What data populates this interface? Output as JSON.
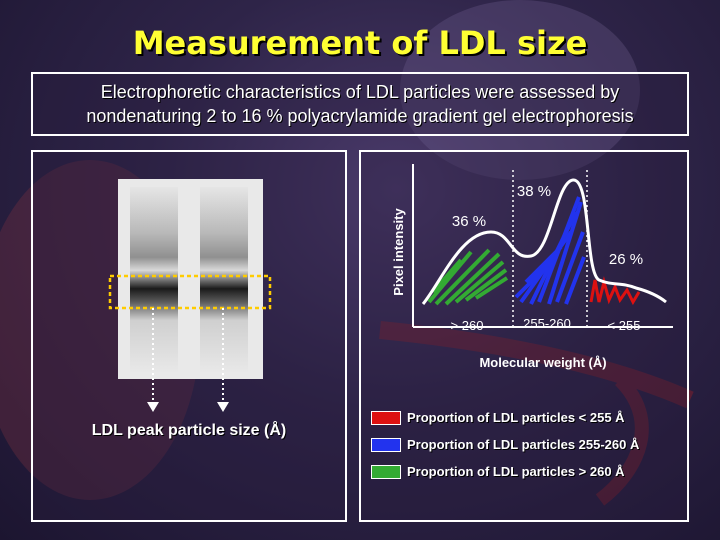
{
  "title": "Measurement of LDL size",
  "subtitle": {
    "line1": "Electrophoretic characteristics of LDL particles were assessed by",
    "line2": "nondenaturing 2 to 16 % polyacrylamide gradient gel electrophoresis"
  },
  "left_panel": {
    "label": "LDL peak particle size (Å)"
  },
  "chart_data": {
    "type": "area",
    "ylabel": "Pixel intensity",
    "xlabel": "Molecular weight (Å)",
    "regions": [
      {
        "range_label": "> 260",
        "percent_label": "36 %",
        "percent": 36,
        "color": "#33aa33"
      },
      {
        "range_label": "255-260",
        "percent_label": "38 %",
        "percent": 38,
        "color": "#2233ee"
      },
      {
        "range_label": "< 255",
        "percent_label": "26 %",
        "percent": 26,
        "color": "#dd1111"
      }
    ]
  },
  "legend": [
    {
      "label": "Proportion of LDL particles < 255 Å",
      "color": "#dd1111"
    },
    {
      "label": "Proportion of LDL particles 255-260 Å",
      "color": "#2233ee"
    },
    {
      "label": "Proportion of LDL particles > 260 Å",
      "color": "#33aa33"
    }
  ]
}
